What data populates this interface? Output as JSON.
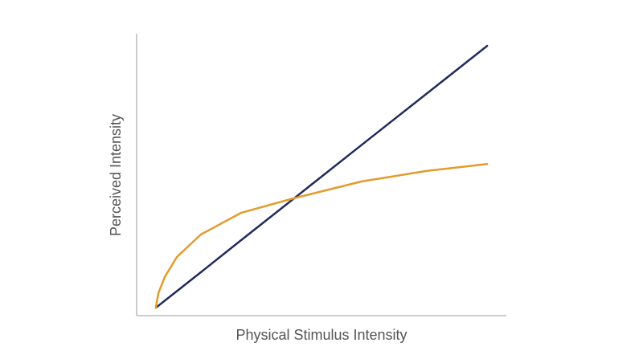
{
  "chart_data": {
    "type": "line",
    "x_label": "Physical Stimulus Intensity",
    "y_label": "Perceived Intensity",
    "x": [
      5.2,
      5.9,
      7.6,
      10.9,
      17.4,
      28.3,
      42.4,
      60.9,
      78.3,
      94.8
    ],
    "series": [
      {
        "color": "#1f2b5b",
        "values": [
          2.8,
          3.5,
          5.3,
          8.7,
          15.4,
          26.8,
          41.4,
          60.6,
          78.6,
          95.7
        ]
      },
      {
        "color": "#e39b2b",
        "values": [
          2.8,
          8.0,
          13.7,
          20.8,
          28.8,
          36.5,
          41.6,
          47.6,
          51.3,
          53.8
        ]
      }
    ],
    "xlim": [
      0,
      100
    ],
    "ylim": [
      0,
      100
    ]
  }
}
